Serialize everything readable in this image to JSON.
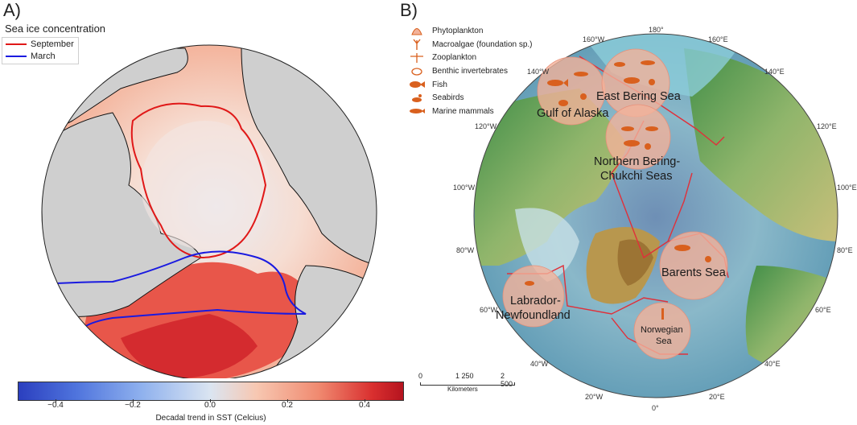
{
  "panel_a": {
    "label": "A)",
    "ice_title": "Sea ice concentration",
    "legend": [
      {
        "label": "September",
        "color": "#e01818"
      },
      {
        "label": "March",
        "color": "#1a1ae0"
      }
    ],
    "colorbar": {
      "ticks": [
        "−0.4",
        "−0.2",
        "0.0",
        "0.2",
        "0.4"
      ],
      "label": "Decadal trend in SST (Celcius)",
      "range": [
        -0.5,
        0.5
      ]
    }
  },
  "panel_b": {
    "label": "B)",
    "legend": [
      {
        "icon": "phytoplankton-icon",
        "label": "Phytoplankton"
      },
      {
        "icon": "macroalgae-icon",
        "label": "Macroalgae (foundation sp.)"
      },
      {
        "icon": "zooplankton-icon",
        "label": "Zooplankton"
      },
      {
        "icon": "benthic-invertebrates-icon",
        "label": "Benthic invertebrates"
      },
      {
        "icon": "fish-icon",
        "label": "Fish"
      },
      {
        "icon": "seabird-icon",
        "label": "Seabirds"
      },
      {
        "icon": "marine-mammal-icon",
        "label": "Marine mammals"
      }
    ],
    "regions": {
      "gulf_of_alaska": "Gulf of Alaska",
      "east_bering": "East Bering Sea",
      "northern_bering_1": "Northern Bering-",
      "northern_bering_2": "Chukchi Seas",
      "barents": "Barents Sea",
      "labrador_1": "Labrador-",
      "labrador_2": "Newfoundland",
      "norwegian_1": "Norwegian",
      "norwegian_2": "Sea"
    },
    "longitudes": {
      "l180": "180°",
      "l160w": "160°W",
      "l160e": "160°E",
      "l140w": "140°W",
      "l140e": "140°E",
      "l120w": "120°W",
      "l120e": "120°E",
      "l100w": "100°W",
      "l100e": "100°E",
      "l80w": "80°W",
      "l80e": "80°E",
      "l60w": "60°W",
      "l60e": "60°E",
      "l40w": "40°W",
      "l40e": "40°E",
      "l20w": "20°W",
      "l20e": "20°E",
      "l0": "0°"
    },
    "scalebar": {
      "t0": "0",
      "t1": "1 250",
      "t2": "2 500",
      "unit": "Kilometers"
    },
    "colors": {
      "bubble": "#f2b29a",
      "icon": "#d9601e",
      "boundary": "#e0303a"
    }
  }
}
